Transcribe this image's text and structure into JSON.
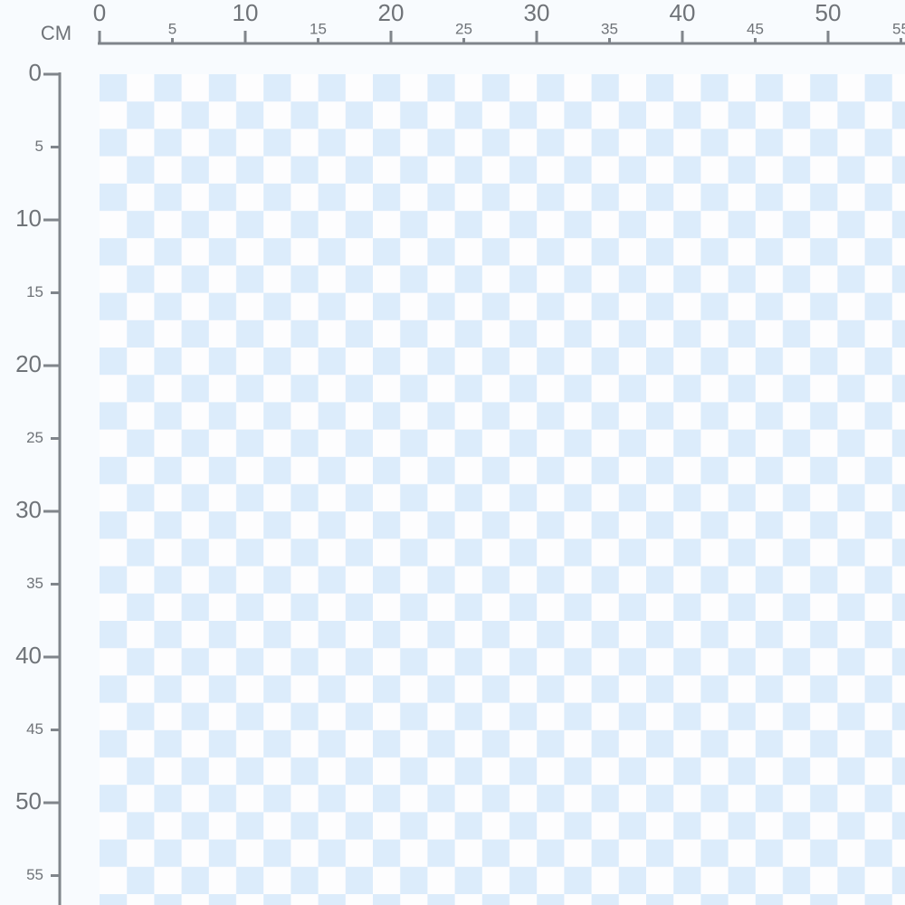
{
  "unit": "CM",
  "top_ruler": {
    "labels": [
      "0",
      "5",
      "10",
      "15",
      "20",
      "25",
      "30",
      "35",
      "40",
      "45",
      "50",
      "55"
    ]
  },
  "left_ruler": {
    "labels": [
      "0",
      "5",
      "10",
      "15",
      "20",
      "25",
      "30",
      "35",
      "40",
      "45",
      "50",
      "55"
    ]
  }
}
